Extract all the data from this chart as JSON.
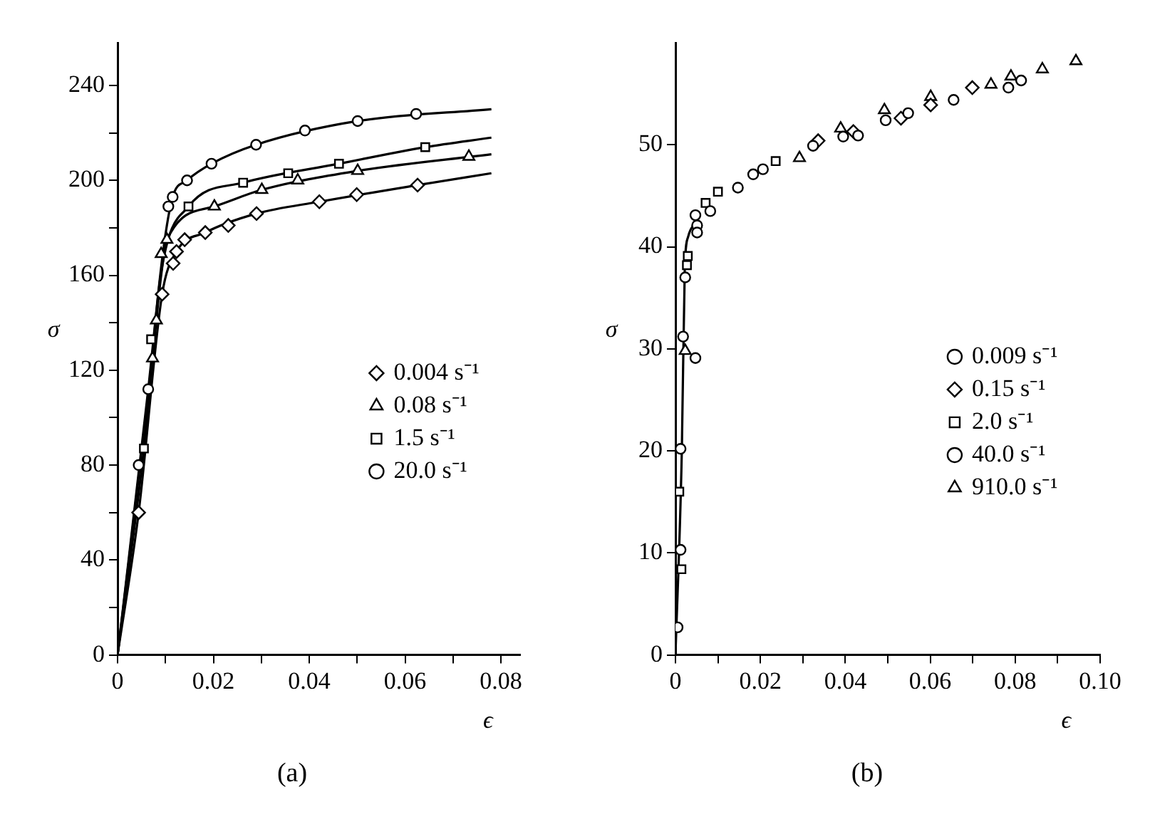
{
  "chart_data": [
    {
      "type": "scatter",
      "title": "(a)",
      "xlabel": "ϵ",
      "ylabel": "σ",
      "xlim": [
        0,
        0.084
      ],
      "ylim": [
        0,
        258
      ],
      "xticks": [
        0,
        {
          "value": 0.01,
          "label": null
        },
        0.02,
        {
          "value": 0.03,
          "label": null
        },
        0.04,
        {
          "value": 0.05,
          "label": null
        },
        0.06,
        {
          "value": 0.07,
          "label": null
        },
        0.08
      ],
      "yticks": [
        0,
        {
          "value": 20,
          "label": null
        },
        40,
        {
          "value": 60,
          "label": null
        },
        80,
        {
          "value": 100,
          "label": null
        },
        120,
        {
          "value": 140,
          "label": null
        },
        160,
        {
          "value": 180,
          "label": null
        },
        200,
        {
          "value": 220,
          "label": null
        },
        240
      ],
      "grid": false,
      "legend": "right",
      "series": [
        {
          "name": "0.004 s⁻¹",
          "type": "scatter",
          "marker": "diamond",
          "color": "#000000",
          "x": [
            0.0044,
            0.0093,
            0.0116,
            0.0123,
            0.014,
            0.0183,
            0.0231,
            0.029,
            0.0421,
            0.0499,
            0.0626
          ],
          "values": [
            60,
            152,
            165,
            170,
            175,
            178,
            181,
            186,
            191,
            194,
            198
          ]
        },
        {
          "name": "0.08 s⁻¹",
          "type": "scatter",
          "marker": "triangle",
          "color": "#000000",
          "x": [
            0.0073,
            0.0081,
            0.0091,
            0.0103,
            0.0202,
            0.0301,
            0.0376,
            0.0501,
            0.0733
          ],
          "values": [
            125,
            141,
            169,
            175,
            189,
            196,
            200,
            204,
            210
          ]
        },
        {
          "name": "1.5 s⁻¹",
          "type": "scatter",
          "marker": "square",
          "color": "#000000",
          "x": [
            0.0055,
            0.007,
            0.0148,
            0.0262,
            0.0356,
            0.0462,
            0.0642
          ],
          "values": [
            87,
            133,
            189,
            199,
            203,
            207,
            214
          ]
        },
        {
          "name": "20.0 s⁻¹",
          "type": "scatter",
          "marker": "circle",
          "color": "#000000",
          "x": [
            0.0044,
            0.0064,
            0.0106,
            0.0115,
            0.0145,
            0.0196,
            0.0289,
            0.0391,
            0.0501,
            0.0623
          ],
          "values": [
            80,
            112,
            189,
            193,
            200,
            207,
            215,
            221,
            225,
            228
          ]
        },
        {
          "type": "line",
          "marker": "none",
          "color": "#000000",
          "x": [
            0,
            0.0044,
            0.0093,
            0.0123,
            0.0183,
            0.029,
            0.0421,
            0.0626,
            0.078
          ],
          "values": [
            0,
            60,
            152,
            170,
            178,
            186,
            191,
            198,
            203
          ]
        },
        {
          "type": "line",
          "marker": "none",
          "color": "#000000",
          "x": [
            0,
            0.0073,
            0.0091,
            0.0103,
            0.0202,
            0.0301,
            0.0501,
            0.078
          ],
          "values": [
            0,
            125,
            160,
            175,
            189,
            196,
            204,
            211
          ]
        },
        {
          "type": "line",
          "marker": "none",
          "color": "#000000",
          "x": [
            0,
            0.0055,
            0.009,
            0.0148,
            0.0262,
            0.0462,
            0.0642,
            0.078
          ],
          "values": [
            0,
            87,
            160,
            189,
            199,
            207,
            214,
            218
          ]
        },
        {
          "type": "line",
          "marker": "none",
          "color": "#000000",
          "x": [
            0,
            0.0064,
            0.0095,
            0.0115,
            0.0145,
            0.0196,
            0.0289,
            0.0501,
            0.078
          ],
          "values": [
            0,
            112,
            170,
            193,
            200,
            207,
            215,
            225,
            230
          ]
        }
      ]
    },
    {
      "type": "scatter",
      "title": "(b)",
      "xlabel": "ϵ",
      "ylabel": "σ",
      "xlim": [
        0,
        0.1
      ],
      "ylim": [
        0,
        60
      ],
      "xticks": [
        0,
        {
          "value": 0.01,
          "label": null
        },
        0.02,
        {
          "value": 0.03,
          "label": null
        },
        0.04,
        {
          "value": 0.05,
          "label": null
        },
        0.06,
        {
          "value": 0.07,
          "label": null
        },
        0.08,
        {
          "value": 0.09,
          "label": null
        },
        {
          "value": 0.1,
          "label": "0.10"
        }
      ],
      "yticks": [
        0,
        10,
        20,
        30,
        40,
        50
      ],
      "grid": false,
      "legend": "right",
      "series": [
        {
          "name": "0.009 s⁻¹",
          "type": "scatter",
          "marker": "circle",
          "color": "#000000",
          "x": [
            0.0018,
            0.0023,
            0.0051,
            0.0082,
            0.0147,
            0.0183,
            0.0206,
            0.0324,
            0.0395,
            0.043,
            0.0495,
            0.0548,
            0.0655,
            0.0784,
            0.0814
          ],
          "values": [
            31.2,
            37.0,
            41.4,
            43.5,
            45.8,
            47.1,
            47.6,
            49.9,
            50.8,
            50.9,
            52.4,
            53.1,
            54.4,
            55.6,
            56.3
          ]
        },
        {
          "name": "0.15 s⁻¹",
          "type": "scatter",
          "marker": "diamond",
          "color": "#000000",
          "x": [
            0.0336,
            0.0419,
            0.0531,
            0.0601,
            0.0699
          ],
          "values": [
            50.4,
            51.3,
            52.6,
            53.9,
            55.6
          ]
        },
        {
          "name": "2.0 s⁻¹",
          "type": "scatter",
          "marker": "square",
          "color": "#000000",
          "x": [
            0.0014,
            0.0009,
            0.0027,
            0.0029,
            0.0071,
            0.01,
            0.0236
          ],
          "values": [
            8.4,
            16.0,
            38.2,
            39.1,
            44.3,
            45.4,
            48.4
          ]
        },
        {
          "name": "40.0 s⁻¹",
          "type": "scatter",
          "marker": "circle",
          "color": "#000000",
          "x": [
            0.0005,
            0.0012,
            0.0012,
            0.0047,
            0.0047,
            0.0051
          ],
          "values": [
            2.7,
            10.3,
            20.2,
            29.1,
            43.1,
            42.1
          ]
        },
        {
          "name": "910.0 s⁻¹",
          "type": "scatter",
          "marker": "triangle",
          "color": "#000000",
          "x": [
            0.0023,
            0.0292,
            0.0389,
            0.0492,
            0.0601,
            0.0743,
            0.079,
            0.0864,
            0.0943
          ],
          "values": [
            29.8,
            48.7,
            51.6,
            53.4,
            54.7,
            55.9,
            56.7,
            57.4,
            58.2
          ]
        },
        {
          "type": "line",
          "marker": "none",
          "color": "#000000",
          "x": [
            0,
            0.0015,
            0.0022,
            0.003,
            0.005
          ],
          "values": [
            0,
            20,
            38,
            41,
            42.5
          ]
        }
      ]
    }
  ]
}
